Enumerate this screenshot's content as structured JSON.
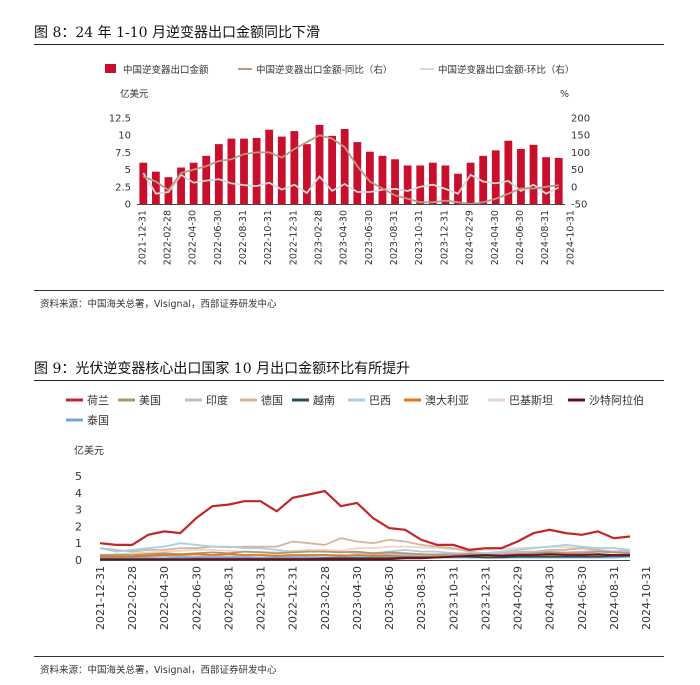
{
  "colors": {
    "bar": "#c8102e",
    "yoy": "#b89a84",
    "mom": "#d8d8d8",
    "nl": "#c0272d",
    "us": "#b0966e",
    "in": "#c3b8d6",
    "de": "#d6b4a3",
    "vn": "#2a4c61",
    "br": "#a6d0e4",
    "au": "#e07b14",
    "pk": "#f2d4c2",
    "sa": "#6e0f1c",
    "th": "#6fa8d6"
  },
  "fig8": {
    "title": "图 8：24 年 1-10 月逆变器出口金额同比下滑",
    "source": "资料来源：中国海关总署，Visignal，西部证券研发中心"
  },
  "fig9": {
    "title": "图 9：光伏逆变器核心出口国家 10 月出口金额环比有所提升",
    "source": "资料来源：中国海关总署，Visignal，西部证券研发中心"
  },
  "chart_data": [
    {
      "type": "bar",
      "title": "图 8：24 年 1-10 月逆变器出口金额同比下滑",
      "ylabel": "亿美元",
      "y2label": "%",
      "ylim": [
        0,
        12.5
      ],
      "y_ticks": [
        "0",
        "2.5",
        "5",
        "7.5",
        "10",
        "12.5"
      ],
      "y2lim": [
        -50,
        200
      ],
      "y2_ticks": [
        "-50",
        "0",
        "50",
        "100",
        "150",
        "200"
      ],
      "x_tick_labels": [
        "2021-12-31",
        "2022-02-28",
        "2022-04-30",
        "2022-06-30",
        "2022-08-31",
        "2022-10-31",
        "2022-12-31",
        "2023-02-28",
        "2023-04-30",
        "2023-06-30",
        "2023-08-31",
        "2023-10-31",
        "2023-12-31",
        "2024-02-29",
        "2024-04-30",
        "2024-06-30",
        "2024-08-31",
        "2024-10-31"
      ],
      "series": [
        {
          "name": "中国逆变器出口金额",
          "type": "bar",
          "axis": "left",
          "values": [
            6.0,
            4.7,
            3.9,
            5.3,
            6.0,
            7.0,
            8.7,
            9.5,
            9.5,
            9.6,
            10.8,
            9.8,
            10.6,
            8.7,
            11.5,
            9.9,
            10.9,
            9.0,
            7.6,
            7.0,
            6.5,
            5.6,
            5.6,
            6.0,
            5.6,
            4.4,
            6.0,
            7.0,
            7.8,
            9.2,
            8.0,
            8.6,
            6.8,
            6.7
          ]
        },
        {
          "name": "中国逆变器出口金额-同比（右）",
          "type": "line",
          "axis": "right",
          "values": [
            30,
            15,
            -10,
            40,
            50,
            60,
            75,
            80,
            95,
            100,
            100,
            85,
            110,
            130,
            150,
            140,
            115,
            60,
            15,
            -5,
            -25,
            -35,
            -45,
            -45,
            -40,
            -45,
            -50,
            -45,
            -35,
            -20,
            -5,
            -5,
            0,
            5
          ]
        },
        {
          "name": "中国逆变器出口金额-环比（右）",
          "type": "line",
          "axis": "right",
          "values": [
            40,
            -20,
            -15,
            35,
            12,
            18,
            22,
            10,
            5,
            2,
            12,
            -8,
            6,
            -18,
            30,
            -12,
            8,
            -15,
            -15,
            -8,
            -6,
            -12,
            0,
            6,
            -6,
            -20,
            35,
            15,
            10,
            17,
            -12,
            6,
            -20,
            -2
          ]
        }
      ]
    },
    {
      "type": "line",
      "title": "图 9：光伏逆变器核心出口国家 10 月出口金额环比有所提升",
      "ylabel": "亿美元",
      "ylim": [
        0,
        5
      ],
      "y_ticks": [
        "0",
        "1",
        "2",
        "3",
        "4",
        "5"
      ],
      "x_tick_labels": [
        "2021-12-31",
        "2022-02-28",
        "2022-04-30",
        "2022-06-30",
        "2022-08-31",
        "2022-10-31",
        "2022-12-31",
        "2023-02-28",
        "2023-04-30",
        "2023-06-30",
        "2023-08-31",
        "2023-10-31",
        "2023-12-31",
        "2024-02-29",
        "2024-04-30",
        "2024-06-30",
        "2024-08-31",
        "2024-10-31"
      ],
      "series": [
        {
          "name": "荷兰",
          "key": "nl",
          "values": [
            1.0,
            0.9,
            0.9,
            1.5,
            1.7,
            1.6,
            2.5,
            3.2,
            3.3,
            3.5,
            3.5,
            2.9,
            3.7,
            3.9,
            4.1,
            3.2,
            3.4,
            2.5,
            1.9,
            1.8,
            1.2,
            0.9,
            0.9,
            0.6,
            0.7,
            0.7,
            1.1,
            1.6,
            1.8,
            1.6,
            1.5,
            1.7,
            1.3,
            1.4
          ]
        },
        {
          "name": "美国",
          "key": "us",
          "values": [
            0.3,
            0.3,
            0.3,
            0.35,
            0.4,
            0.35,
            0.4,
            0.45,
            0.4,
            0.5,
            0.45,
            0.4,
            0.45,
            0.5,
            0.5,
            0.45,
            0.5,
            0.4,
            0.45,
            0.4,
            0.35,
            0.3,
            0.3,
            0.35,
            0.3,
            0.3,
            0.35,
            0.4,
            0.45,
            0.4,
            0.4,
            0.5,
            0.45,
            0.4
          ]
        },
        {
          "name": "印度",
          "key": "in",
          "values": [
            0.2,
            0.2,
            0.15,
            0.2,
            0.25,
            0.2,
            0.2,
            0.25,
            0.2,
            0.25,
            0.3,
            0.25,
            0.2,
            0.25,
            0.3,
            0.3,
            0.25,
            0.3,
            0.35,
            0.3,
            0.3,
            0.35,
            0.4,
            0.35,
            0.3,
            0.35,
            0.4,
            0.45,
            0.5,
            0.45,
            0.5,
            0.55,
            0.5,
            0.5
          ]
        },
        {
          "name": "德国",
          "key": "de",
          "values": [
            0.7,
            0.6,
            0.5,
            0.6,
            0.6,
            0.7,
            0.7,
            0.8,
            0.75,
            0.8,
            0.8,
            0.8,
            1.1,
            1.0,
            0.9,
            1.3,
            1.1,
            1.0,
            1.2,
            1.1,
            0.9,
            0.8,
            0.7,
            0.5,
            0.4,
            0.4,
            0.5,
            0.5,
            0.6,
            0.6,
            0.7,
            0.6,
            0.5,
            0.6
          ]
        },
        {
          "name": "越南",
          "key": "vn",
          "values": [
            0.05,
            0.05,
            0.05,
            0.05,
            0.05,
            0.05,
            0.05,
            0.05,
            0.05,
            0.05,
            0.05,
            0.05,
            0.05,
            0.05,
            0.1,
            0.1,
            0.1,
            0.1,
            0.1,
            0.15,
            0.15,
            0.15,
            0.2,
            0.2,
            0.15,
            0.15,
            0.2,
            0.2,
            0.2,
            0.2,
            0.2,
            0.2,
            0.25,
            0.25
          ]
        },
        {
          "name": "巴西",
          "key": "br",
          "values": [
            0.7,
            0.5,
            0.6,
            0.7,
            0.8,
            1.0,
            0.9,
            0.8,
            0.8,
            0.7,
            0.7,
            0.6,
            0.5,
            0.5,
            0.5,
            0.5,
            0.4,
            0.4,
            0.5,
            0.6,
            0.5,
            0.5,
            0.4,
            0.4,
            0.4,
            0.5,
            0.6,
            0.7,
            0.8,
            0.9,
            0.8,
            0.7,
            0.7,
            0.6
          ]
        },
        {
          "name": "澳大利亚",
          "key": "au",
          "values": [
            0.2,
            0.2,
            0.2,
            0.25,
            0.3,
            0.3,
            0.35,
            0.3,
            0.35,
            0.3,
            0.3,
            0.25,
            0.3,
            0.3,
            0.3,
            0.25,
            0.3,
            0.25,
            0.25,
            0.2,
            0.2,
            0.2,
            0.2,
            0.2,
            0.25,
            0.25,
            0.3,
            0.3,
            0.3,
            0.35,
            0.3,
            0.3,
            0.3,
            0.3
          ]
        },
        {
          "name": "巴基斯坦",
          "key": "pk",
          "values": [
            0.3,
            0.35,
            0.4,
            0.45,
            0.5,
            0.55,
            0.6,
            0.6,
            0.55,
            0.5,
            0.5,
            0.45,
            0.55,
            0.6,
            0.6,
            0.55,
            0.7,
            0.7,
            0.8,
            0.8,
            0.75,
            0.7,
            0.65,
            0.6,
            0.6,
            0.65,
            0.7,
            0.75,
            0.8,
            0.75,
            0.7,
            0.6,
            0.5,
            0.4
          ]
        },
        {
          "name": "沙特阿拉伯",
          "key": "sa",
          "values": [
            0.02,
            0.02,
            0.02,
            0.03,
            0.03,
            0.03,
            0.05,
            0.05,
            0.05,
            0.05,
            0.05,
            0.05,
            0.05,
            0.05,
            0.05,
            0.05,
            0.05,
            0.05,
            0.05,
            0.1,
            0.1,
            0.15,
            0.2,
            0.25,
            0.3,
            0.25,
            0.3,
            0.3,
            0.35,
            0.3,
            0.3,
            0.35,
            0.3,
            0.3
          ]
        },
        {
          "name": "泰国",
          "key": "th",
          "values": [
            0.1,
            0.1,
            0.1,
            0.1,
            0.1,
            0.15,
            0.15,
            0.15,
            0.15,
            0.15,
            0.15,
            0.15,
            0.15,
            0.15,
            0.15,
            0.15,
            0.15,
            0.15,
            0.15,
            0.15,
            0.15,
            0.15,
            0.15,
            0.15,
            0.15,
            0.15,
            0.15,
            0.15,
            0.15,
            0.15,
            0.15,
            0.15,
            0.15,
            0.2
          ]
        }
      ]
    }
  ]
}
